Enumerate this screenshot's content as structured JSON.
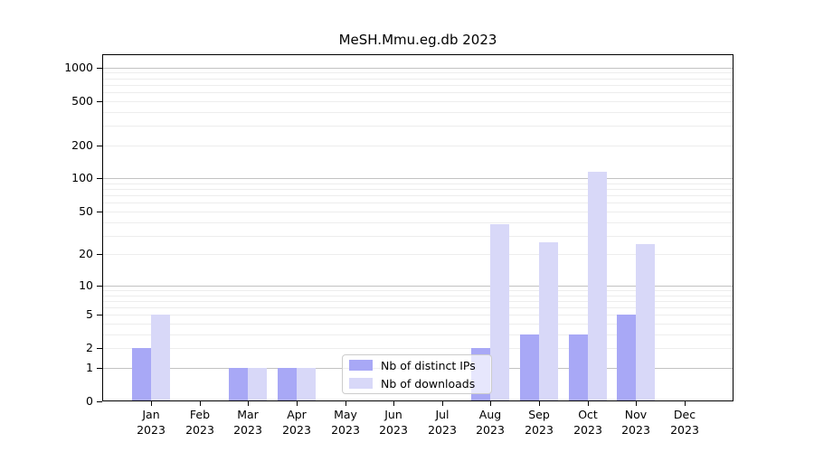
{
  "chart_data": {
    "type": "bar",
    "title": "MeSH.Mmu.eg.db 2023",
    "categories": [
      "Jan 2023",
      "Feb 2023",
      "Mar 2023",
      "Apr 2023",
      "May 2023",
      "Jun 2023",
      "Jul 2023",
      "Aug 2023",
      "Sep 2023",
      "Oct 2023",
      "Nov 2023",
      "Dec 2023"
    ],
    "series": [
      {
        "name": "Nb of distinct IPs",
        "color": "#a8a8f6",
        "values": [
          2,
          0,
          1,
          1,
          0,
          0,
          0,
          2,
          3,
          3,
          5,
          0
        ]
      },
      {
        "name": "Nb of downloads",
        "color": "#d8d8f8",
        "values": [
          5,
          0,
          1,
          1,
          0,
          0,
          0,
          38,
          26,
          115,
          25,
          0
        ]
      }
    ],
    "xlabel": "",
    "ylabel": "",
    "yscale": "log1p",
    "ylim": [
      0,
      1320
    ],
    "yticks": [
      0,
      1,
      2,
      5,
      10,
      20,
      50,
      100,
      200,
      500,
      1000
    ],
    "grid": true,
    "legend_position": "inside lower center"
  },
  "legend": {
    "items": [
      {
        "label": "Nb of distinct IPs"
      },
      {
        "label": "Nb of downloads"
      }
    ]
  }
}
